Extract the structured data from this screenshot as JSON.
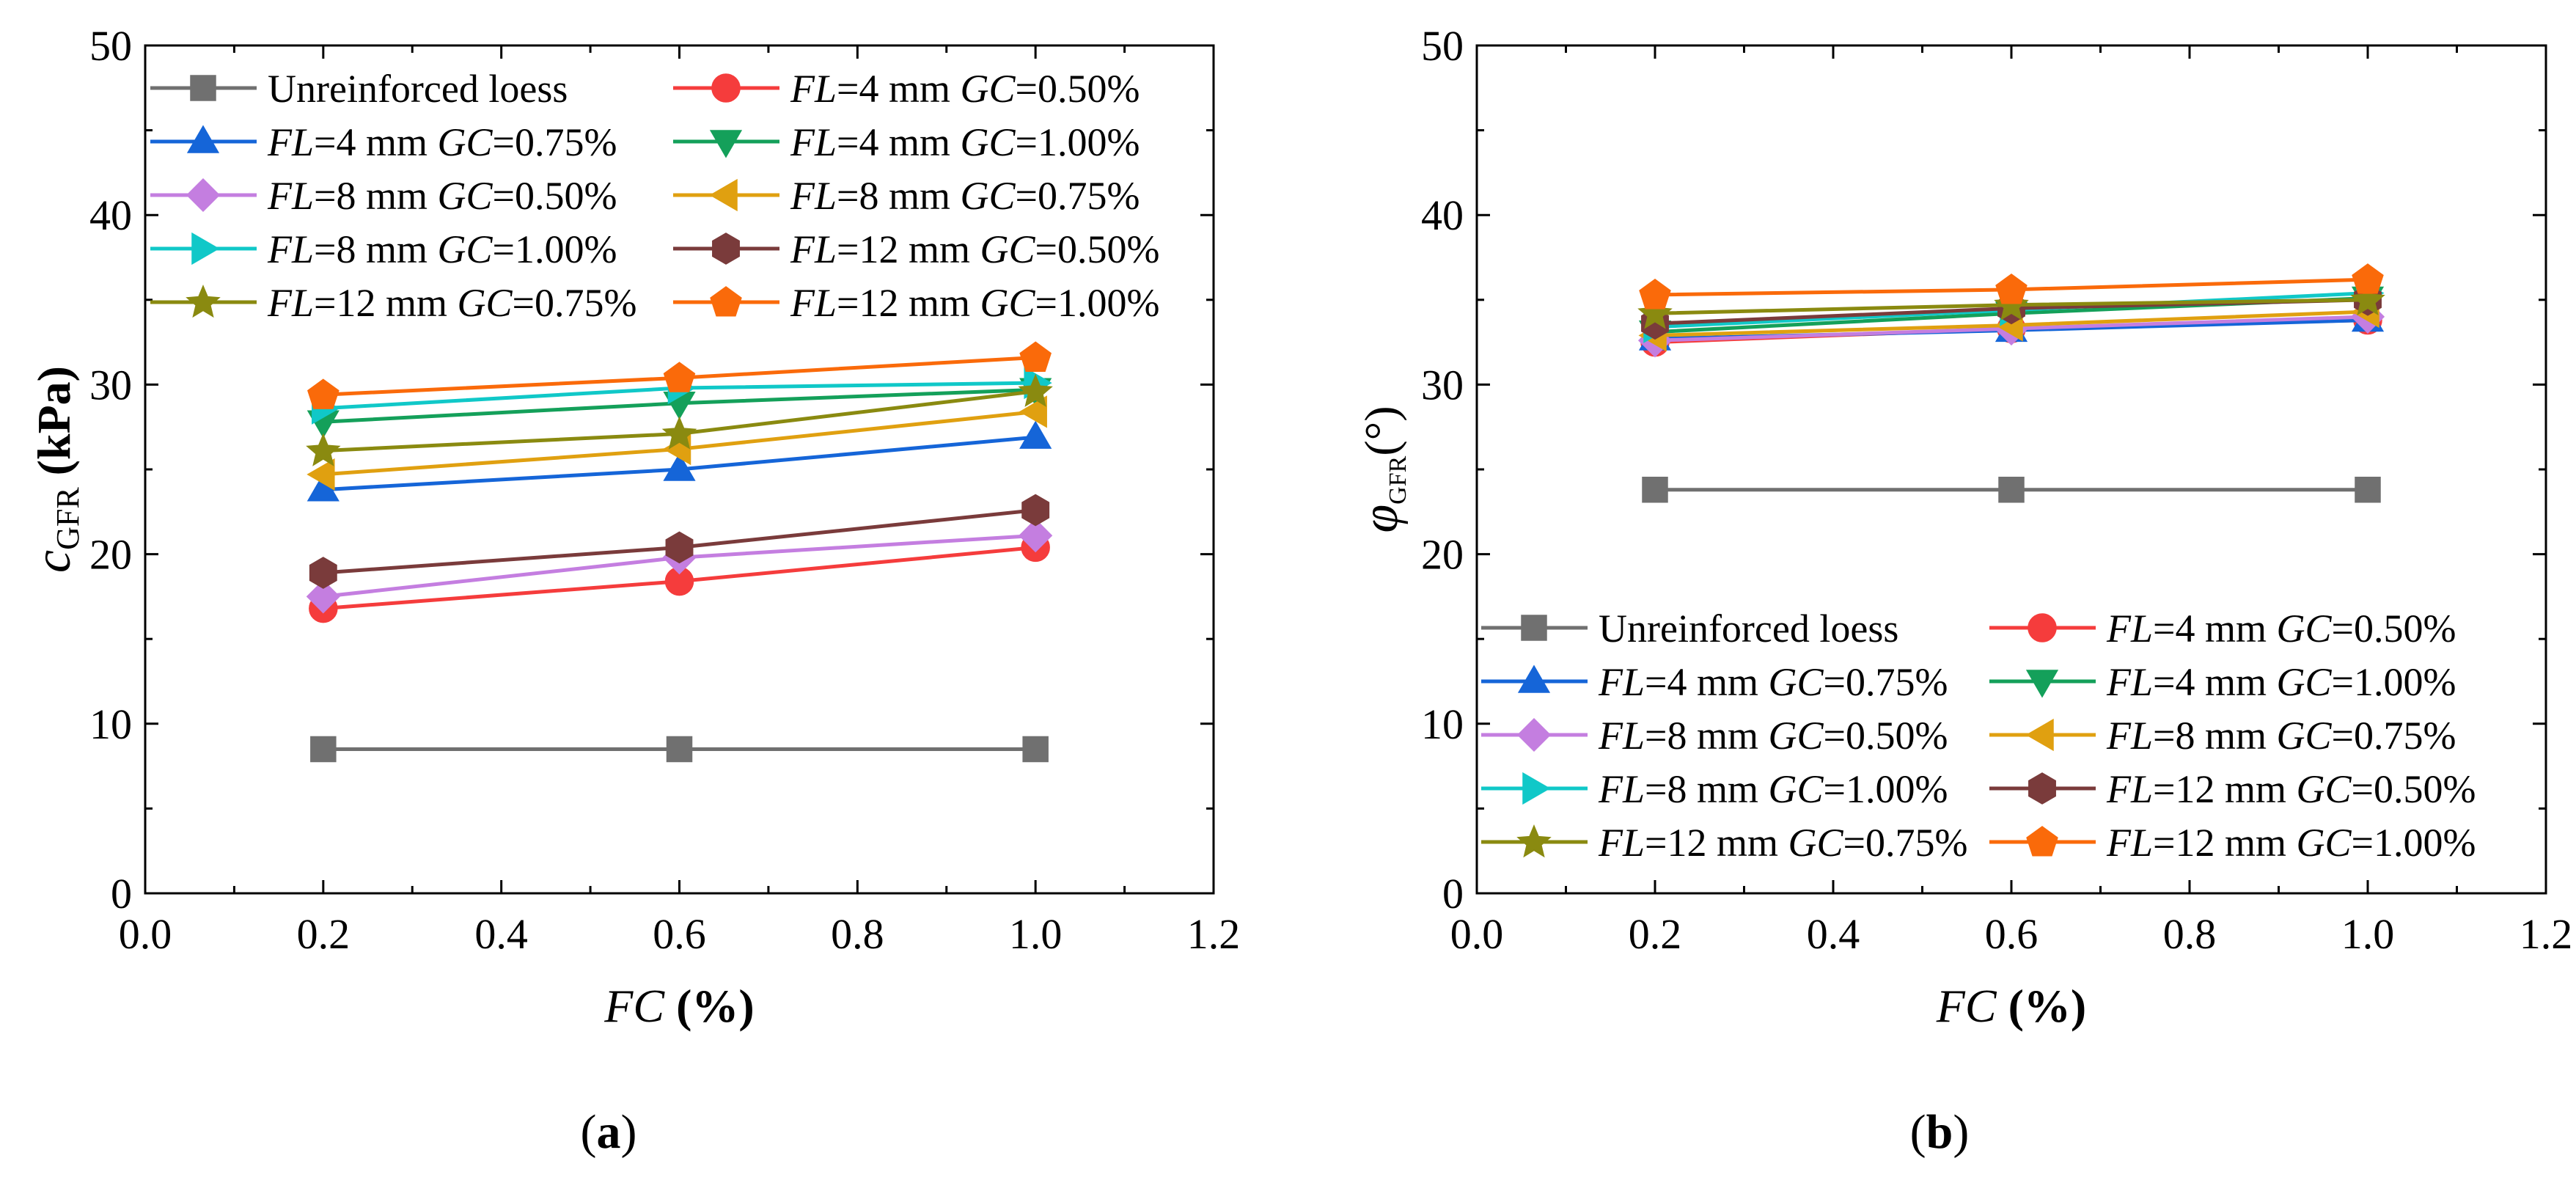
{
  "chart_data": [
    {
      "type": "line",
      "panel_label": {
        "open": "(",
        "letter": "a",
        "close": ")"
      },
      "xlabel": {
        "var": "FC",
        "unit": " (%)"
      },
      "ylabel": {
        "sym": "c",
        "sub": "GFR",
        "unit": " (kPa)"
      },
      "xlim": [
        0.0,
        1.2
      ],
      "ylim": [
        0,
        50
      ],
      "xticks": [
        0.0,
        0.2,
        0.4,
        0.6,
        0.8,
        1.0,
        1.2
      ],
      "xtick_labels": [
        "0.0",
        "0.2",
        "0.4",
        "0.6",
        "0.8",
        "1.0",
        "1.2"
      ],
      "yticks": [
        0,
        10,
        20,
        30,
        40,
        50
      ],
      "ytick_labels": [
        "0",
        "10",
        "20",
        "30",
        "40",
        "50"
      ],
      "legend_position": "top-left",
      "x": [
        0.2,
        0.6,
        1.0
      ],
      "series": [
        {
          "name": "Unreinforced loess",
          "values": [
            8.5,
            8.5,
            8.5
          ]
        },
        {
          "name": "FL=4 mm GC=0.50%",
          "values": [
            16.8,
            18.4,
            20.4
          ]
        },
        {
          "name": "FL=4 mm GC=0.75%",
          "values": [
            23.8,
            25.0,
            26.9
          ]
        },
        {
          "name": "FL=4 mm GC=1.00%",
          "values": [
            27.8,
            28.9,
            29.7
          ]
        },
        {
          "name": "FL=8 mm GC=0.50%",
          "values": [
            17.5,
            19.8,
            21.1
          ]
        },
        {
          "name": "FL=8 mm GC=0.75%",
          "values": [
            24.7,
            26.2,
            28.4
          ]
        },
        {
          "name": "FL=8 mm GC=1.00%",
          "values": [
            28.6,
            29.8,
            30.1
          ]
        },
        {
          "name": "FL=12 mm GC=0.50%",
          "values": [
            18.9,
            20.4,
            22.6
          ]
        },
        {
          "name": "FL=12 mm GC=0.75%",
          "values": [
            26.1,
            27.1,
            29.6
          ]
        },
        {
          "name": "FL=12 mm GC=1.00%",
          "values": [
            29.4,
            30.4,
            31.6
          ]
        }
      ]
    },
    {
      "type": "line",
      "panel_label": {
        "open": "(",
        "letter": "b",
        "close": ")"
      },
      "xlabel": {
        "var": "FC",
        "unit": " (%)"
      },
      "ylabel": {
        "sym": "φ",
        "sub": "GFR",
        "unit": "(°)"
      },
      "xlim": [
        0.0,
        1.2
      ],
      "ylim": [
        0,
        50
      ],
      "xticks": [
        0.0,
        0.2,
        0.4,
        0.6,
        0.8,
        1.0,
        1.2
      ],
      "xtick_labels": [
        "0.0",
        "0.2",
        "0.4",
        "0.6",
        "0.8",
        "1.0",
        "1.2"
      ],
      "yticks": [
        0,
        10,
        20,
        30,
        40,
        50
      ],
      "ytick_labels": [
        "0",
        "10",
        "20",
        "30",
        "40",
        "50"
      ],
      "legend_position": "bottom",
      "x": [
        0.2,
        0.6,
        1.0
      ],
      "series": [
        {
          "name": "Unreinforced loess",
          "values": [
            23.8,
            23.8,
            23.8
          ]
        },
        {
          "name": "FL=4 mm GC=0.50%",
          "values": [
            32.5,
            33.3,
            33.8
          ]
        },
        {
          "name": "FL=4 mm GC=0.75%",
          "values": [
            32.7,
            33.2,
            33.8
          ]
        },
        {
          "name": "FL=4 mm GC=1.00%",
          "values": [
            33.1,
            34.2,
            35.1
          ]
        },
        {
          "name": "FL=8 mm GC=0.50%",
          "values": [
            32.6,
            33.3,
            34.0
          ]
        },
        {
          "name": "FL=8 mm GC=0.75%",
          "values": [
            32.9,
            33.5,
            34.3
          ]
        },
        {
          "name": "FL=8 mm GC=1.00%",
          "values": [
            33.4,
            34.4,
            35.4
          ]
        },
        {
          "name": "FL=12 mm GC=0.50%",
          "values": [
            33.6,
            34.5,
            35.0
          ]
        },
        {
          "name": "FL=12 mm GC=0.75%",
          "values": [
            34.2,
            34.7,
            35.0
          ]
        },
        {
          "name": "FL=12 mm GC=1.00%",
          "values": [
            35.3,
            35.6,
            36.2
          ]
        }
      ]
    }
  ],
  "series_styles": [
    {
      "color": "#707070",
      "marker": "square"
    },
    {
      "color": "#f53c3c",
      "marker": "circle"
    },
    {
      "color": "#1565d8",
      "marker": "triangle-up"
    },
    {
      "color": "#14a05a",
      "marker": "triangle-down"
    },
    {
      "color": "#c47ee0",
      "marker": "diamond"
    },
    {
      "color": "#e0a010",
      "marker": "triangle-left"
    },
    {
      "color": "#10c8c8",
      "marker": "triangle-right"
    },
    {
      "color": "#7a3b3b",
      "marker": "hexagon"
    },
    {
      "color": "#8a8a10",
      "marker": "star"
    },
    {
      "color": "#fa6a0a",
      "marker": "pentagon"
    }
  ],
  "legend_labels": [
    {
      "name": "Unreinforced loess",
      "plain": true
    },
    {
      "fl": "FL",
      "fl_val": "=4 mm ",
      "gc": "GC",
      "gc_val": "=0.50%"
    },
    {
      "fl": "FL",
      "fl_val": "=4 mm ",
      "gc": "GC",
      "gc_val": "=0.75%"
    },
    {
      "fl": "FL",
      "fl_val": "=4 mm ",
      "gc": "GC",
      "gc_val": "=1.00%"
    },
    {
      "fl": "FL",
      "fl_val": "=8 mm ",
      "gc": "GC",
      "gc_val": "=0.50%"
    },
    {
      "fl": "FL",
      "fl_val": "=8 mm ",
      "gc": "GC",
      "gc_val": "=0.75%"
    },
    {
      "fl": "FL",
      "fl_val": "=8 mm ",
      "gc": "GC",
      "gc_val": "=1.00%"
    },
    {
      "fl": "FL",
      "fl_val": "=12 mm ",
      "gc": "GC",
      "gc_val": "=0.50%"
    },
    {
      "fl": "FL",
      "fl_val": "=12 mm ",
      "gc": "GC",
      "gc_val": "=0.75%"
    },
    {
      "fl": "FL",
      "fl_val": "=12 mm ",
      "gc": "GC",
      "gc_val": "=1.00%"
    }
  ]
}
